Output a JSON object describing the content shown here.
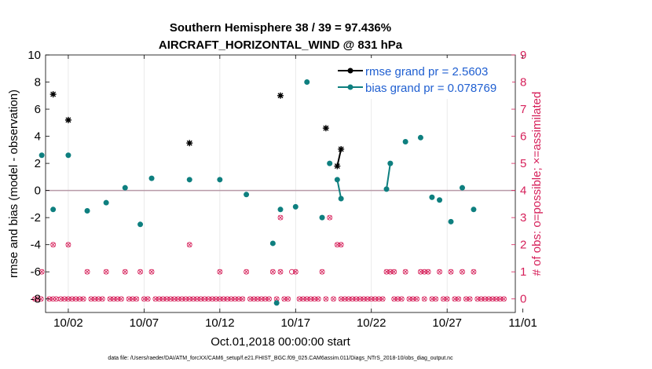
{
  "chart_data": {
    "type": "line",
    "title_line1": "Southern Hemisphere 38 / 39 = 97.436%",
    "title_line2": "AIRCRAFT_HORIZONTAL_WIND @ 831 hPa",
    "ylabel": "rmse and bias (model - observation)",
    "y2label": "# of obs: o=possible; ×=assimilated",
    "xlabel": "Oct.01,2018 00:00:00 start",
    "footnote": "data file: /Users/raeder/DAI/ATM_forcXX/CAM6_setup/f.e21.FHIST_BGC.f09_025.CAM6assim.011/Diags_NTrS_2018-10/obs_diag_output.nc",
    "xlim": [
      0.5,
      31.5
    ],
    "ylim": [
      -9,
      10
    ],
    "y2lim": [
      -0.5,
      9
    ],
    "x_ticks": [
      2,
      7,
      12,
      17,
      22,
      27,
      32
    ],
    "x_tick_labels": [
      "10/02",
      "10/07",
      "10/12",
      "10/17",
      "10/22",
      "10/27",
      "11/01"
    ],
    "y_ticks": [
      -8,
      -6,
      -4,
      -2,
      0,
      2,
      4,
      6,
      8,
      10
    ],
    "y2_ticks": [
      0,
      1,
      2,
      3,
      4,
      5,
      6,
      7,
      8,
      9
    ],
    "colors": {
      "rmse": "#000000",
      "bias": "#0e7f7f",
      "obs": "#d6205a",
      "zero": "#b89aa8",
      "grid": "#e4e4e4",
      "legend_text": "#1f5fd1"
    },
    "series": [
      {
        "name": "rmse grand pr = 2.5603",
        "key": "rmse",
        "points": [
          [
            1.0,
            7.1
          ],
          [
            2.0,
            5.2
          ],
          [
            10.0,
            3.5
          ],
          [
            16.0,
            7.0
          ],
          [
            19.0,
            4.6
          ],
          [
            19.75,
            1.8
          ],
          [
            20.0,
            3.05
          ]
        ],
        "segments": [
          [
            [
              19.75,
              1.8
            ],
            [
              20.0,
              3.05
            ]
          ]
        ]
      },
      {
        "name": "bias grand pr = 0.078769",
        "key": "bias",
        "points": [
          [
            0.25,
            2.6
          ],
          [
            1.0,
            -1.4
          ],
          [
            2.0,
            2.6
          ],
          [
            3.25,
            -1.5
          ],
          [
            4.5,
            -0.9
          ],
          [
            5.75,
            0.2
          ],
          [
            6.75,
            -2.5
          ],
          [
            7.5,
            0.9
          ],
          [
            10.0,
            0.8
          ],
          [
            12.0,
            0.8
          ],
          [
            13.75,
            -0.3
          ],
          [
            15.5,
            -3.9
          ],
          [
            15.75,
            -8.3
          ],
          [
            16.0,
            -1.4
          ],
          [
            17.0,
            -1.2
          ],
          [
            17.75,
            8.0
          ],
          [
            18.75,
            -2.0
          ],
          [
            19.25,
            2.0
          ],
          [
            19.75,
            0.8
          ],
          [
            20.0,
            -0.6
          ],
          [
            23.0,
            0.1
          ],
          [
            23.25,
            2.0
          ],
          [
            24.25,
            3.6
          ],
          [
            25.25,
            3.9
          ],
          [
            26.0,
            -0.5
          ],
          [
            26.5,
            -0.7
          ],
          [
            27.25,
            -2.3
          ],
          [
            28.0,
            0.2
          ],
          [
            28.75,
            -1.4
          ]
        ],
        "segments": [
          [
            [
              19.75,
              0.8
            ],
            [
              20.0,
              -0.6
            ]
          ],
          [
            [
              23.0,
              0.1
            ],
            [
              23.25,
              2.0
            ]
          ]
        ]
      }
    ],
    "obs_possible": [
      [
        -0.2,
        0
      ],
      [
        0,
        0
      ],
      [
        0.2,
        0
      ],
      [
        0.25,
        1
      ],
      [
        0.75,
        0
      ],
      [
        1,
        2
      ],
      [
        1,
        0
      ],
      [
        1.2,
        0
      ],
      [
        1.5,
        0
      ],
      [
        1.75,
        0
      ],
      [
        2,
        2
      ],
      [
        2,
        0
      ],
      [
        2.25,
        0
      ],
      [
        2.5,
        0
      ],
      [
        2.75,
        0
      ],
      [
        3,
        0
      ],
      [
        3.25,
        1
      ],
      [
        3.5,
        0
      ],
      [
        3.75,
        0
      ],
      [
        4,
        0
      ],
      [
        4.25,
        0
      ],
      [
        4.5,
        1
      ],
      [
        4.75,
        0
      ],
      [
        5,
        0
      ],
      [
        5.25,
        0
      ],
      [
        5.5,
        0
      ],
      [
        5.75,
        1
      ],
      [
        6,
        0
      ],
      [
        6.25,
        0
      ],
      [
        6.5,
        0
      ],
      [
        6.75,
        1
      ],
      [
        7,
        0
      ],
      [
        7.25,
        0
      ],
      [
        7.5,
        1
      ],
      [
        7.75,
        0
      ],
      [
        8,
        0
      ],
      [
        8.25,
        0
      ],
      [
        8.5,
        0
      ],
      [
        8.75,
        0
      ],
      [
        9,
        0
      ],
      [
        9.25,
        0
      ],
      [
        9.5,
        0
      ],
      [
        9.75,
        0
      ],
      [
        10,
        2
      ],
      [
        10,
        0
      ],
      [
        10.25,
        0
      ],
      [
        10.5,
        0
      ],
      [
        10.75,
        0
      ],
      [
        11,
        0
      ],
      [
        11.25,
        0
      ],
      [
        11.5,
        0
      ],
      [
        11.75,
        0
      ],
      [
        12,
        1
      ],
      [
        12,
        0
      ],
      [
        12.25,
        0
      ],
      [
        12.5,
        0
      ],
      [
        12.75,
        0
      ],
      [
        13,
        0
      ],
      [
        13.25,
        0
      ],
      [
        13.5,
        0
      ],
      [
        13.75,
        1
      ],
      [
        14,
        0
      ],
      [
        14.25,
        0
      ],
      [
        14.5,
        0
      ],
      [
        14.75,
        0
      ],
      [
        15,
        0
      ],
      [
        15.25,
        0
      ],
      [
        15.5,
        1
      ],
      [
        15.75,
        0
      ],
      [
        16,
        3
      ],
      [
        16,
        1
      ],
      [
        16.25,
        0
      ],
      [
        16.5,
        0
      ],
      [
        16.75,
        1
      ],
      [
        17,
        1
      ],
      [
        17.25,
        0
      ],
      [
        17.5,
        0
      ],
      [
        17.75,
        0
      ],
      [
        18,
        0
      ],
      [
        18.25,
        0
      ],
      [
        18.5,
        0
      ],
      [
        18.75,
        1
      ],
      [
        19,
        0
      ],
      [
        19.25,
        3
      ],
      [
        19.5,
        0
      ],
      [
        19.75,
        2
      ],
      [
        20,
        2
      ],
      [
        20,
        0
      ],
      [
        20.25,
        0
      ],
      [
        20.5,
        0
      ],
      [
        20.75,
        0
      ],
      [
        21,
        0
      ],
      [
        21.25,
        0
      ],
      [
        21.5,
        0
      ],
      [
        21.75,
        0
      ],
      [
        22,
        0
      ],
      [
        22.25,
        0
      ],
      [
        22.5,
        0
      ],
      [
        22.75,
        0
      ],
      [
        23,
        1
      ],
      [
        23.25,
        1
      ],
      [
        23.5,
        1
      ],
      [
        23.5,
        0
      ],
      [
        23.75,
        0
      ],
      [
        24,
        0
      ],
      [
        24.25,
        1
      ],
      [
        24.5,
        0
      ],
      [
        24.75,
        0
      ],
      [
        25,
        0
      ],
      [
        25.25,
        1
      ],
      [
        25.5,
        1
      ],
      [
        25.5,
        0
      ],
      [
        25.75,
        1
      ],
      [
        26,
        0
      ],
      [
        26.25,
        0
      ],
      [
        26.5,
        1
      ],
      [
        26.75,
        0
      ],
      [
        27,
        0
      ],
      [
        27.25,
        1
      ],
      [
        27.5,
        0
      ],
      [
        27.75,
        0
      ],
      [
        28,
        1
      ],
      [
        28.25,
        0
      ],
      [
        28.5,
        0
      ],
      [
        28.75,
        1
      ],
      [
        29,
        0
      ],
      [
        29.25,
        0
      ],
      [
        29.5,
        0
      ],
      [
        29.75,
        0
      ],
      [
        30,
        0
      ],
      [
        30.25,
        0
      ],
      [
        30.5,
        0
      ],
      [
        30.75,
        0
      ]
    ],
    "obs_assimilated": [
      [
        -0.2,
        0
      ],
      [
        0,
        0
      ],
      [
        0.2,
        0
      ],
      [
        0.25,
        1
      ],
      [
        0.75,
        0
      ],
      [
        1,
        2
      ],
      [
        1,
        0
      ],
      [
        1.2,
        0
      ],
      [
        1.5,
        0
      ],
      [
        1.75,
        0
      ],
      [
        2,
        2
      ],
      [
        2,
        0
      ],
      [
        2.25,
        0
      ],
      [
        2.5,
        0
      ],
      [
        2.75,
        0
      ],
      [
        3,
        0
      ],
      [
        3.25,
        1
      ],
      [
        3.5,
        0
      ],
      [
        3.75,
        0
      ],
      [
        4,
        0
      ],
      [
        4.25,
        0
      ],
      [
        4.5,
        1
      ],
      [
        4.75,
        0
      ],
      [
        5,
        0
      ],
      [
        5.25,
        0
      ],
      [
        5.5,
        0
      ],
      [
        5.75,
        1
      ],
      [
        6,
        0
      ],
      [
        6.25,
        0
      ],
      [
        6.5,
        0
      ],
      [
        6.75,
        1
      ],
      [
        7,
        0
      ],
      [
        7.25,
        0
      ],
      [
        7.5,
        1
      ],
      [
        7.75,
        0
      ],
      [
        8,
        0
      ],
      [
        8.25,
        0
      ],
      [
        8.5,
        0
      ],
      [
        8.75,
        0
      ],
      [
        9,
        0
      ],
      [
        9.25,
        0
      ],
      [
        9.5,
        0
      ],
      [
        9.75,
        0
      ],
      [
        10,
        2
      ],
      [
        10,
        0
      ],
      [
        10.25,
        0
      ],
      [
        10.5,
        0
      ],
      [
        10.75,
        0
      ],
      [
        11,
        0
      ],
      [
        11.25,
        0
      ],
      [
        11.5,
        0
      ],
      [
        11.75,
        0
      ],
      [
        12,
        1
      ],
      [
        12,
        0
      ],
      [
        12.25,
        0
      ],
      [
        12.5,
        0
      ],
      [
        12.75,
        0
      ],
      [
        13,
        0
      ],
      [
        13.25,
        0
      ],
      [
        13.5,
        0
      ],
      [
        13.75,
        1
      ],
      [
        14,
        0
      ],
      [
        14.25,
        0
      ],
      [
        14.5,
        0
      ],
      [
        14.75,
        0
      ],
      [
        15,
        0
      ],
      [
        15.25,
        0
      ],
      [
        15.5,
        1
      ],
      [
        15.75,
        0
      ],
      [
        16,
        3
      ],
      [
        16,
        1
      ],
      [
        16.25,
        0
      ],
      [
        16.5,
        0
      ],
      [
        17,
        1
      ],
      [
        17.25,
        0
      ],
      [
        17.5,
        0
      ],
      [
        17.75,
        0
      ],
      [
        18,
        0
      ],
      [
        18.25,
        0
      ],
      [
        18.5,
        0
      ],
      [
        18.75,
        1
      ],
      [
        19,
        0
      ],
      [
        19.25,
        3
      ],
      [
        19.5,
        0
      ],
      [
        19.75,
        2
      ],
      [
        20,
        2
      ],
      [
        20,
        0
      ],
      [
        20.25,
        0
      ],
      [
        20.5,
        0
      ],
      [
        20.75,
        0
      ],
      [
        21,
        0
      ],
      [
        21.25,
        0
      ],
      [
        21.5,
        0
      ],
      [
        21.75,
        0
      ],
      [
        22,
        0
      ],
      [
        22.25,
        0
      ],
      [
        22.5,
        0
      ],
      [
        22.75,
        0
      ],
      [
        23,
        1
      ],
      [
        23.25,
        1
      ],
      [
        23.5,
        1
      ],
      [
        23.5,
        0
      ],
      [
        23.75,
        0
      ],
      [
        24,
        0
      ],
      [
        24.25,
        1
      ],
      [
        24.5,
        0
      ],
      [
        24.75,
        0
      ],
      [
        25,
        0
      ],
      [
        25.25,
        1
      ],
      [
        25.5,
        1
      ],
      [
        25.5,
        0
      ],
      [
        25.75,
        1
      ],
      [
        26,
        0
      ],
      [
        26.25,
        0
      ],
      [
        26.5,
        1
      ],
      [
        26.75,
        0
      ],
      [
        27,
        0
      ],
      [
        27.25,
        1
      ],
      [
        27.5,
        0
      ],
      [
        27.75,
        0
      ],
      [
        28,
        1
      ],
      [
        28.25,
        0
      ],
      [
        28.5,
        0
      ],
      [
        28.75,
        1
      ],
      [
        29,
        0
      ],
      [
        29.25,
        0
      ],
      [
        29.5,
        0
      ],
      [
        29.75,
        0
      ],
      [
        30,
        0
      ],
      [
        30.25,
        0
      ],
      [
        30.5,
        0
      ],
      [
        30.75,
        0
      ]
    ]
  }
}
